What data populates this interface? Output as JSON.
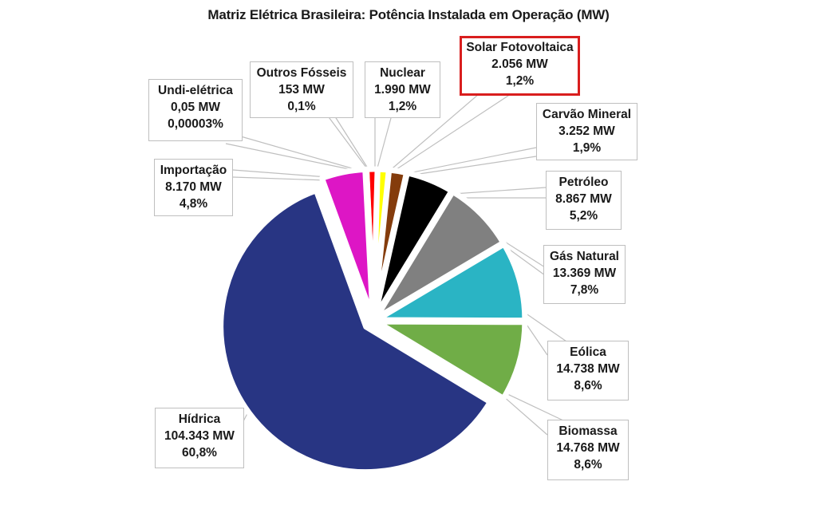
{
  "title": "Matriz Elétrica Brasileira: Potência Instalada em Operação (MW)",
  "chart_data": {
    "type": "pie",
    "title": "Matriz Elétrica Brasileira: Potência Instalada em Operação (MW)",
    "unit": "MW",
    "exploded": true,
    "slices": [
      {
        "label": "Hídrica",
        "value": 104343,
        "value_text": "104.343 MW",
        "percent": 60.8,
        "percent_text": "60,8%",
        "color": "#283583"
      },
      {
        "label": "Importação",
        "value": 8170,
        "value_text": "8.170 MW",
        "percent": 4.8,
        "percent_text": "4,8%",
        "color": "#dd16c5"
      },
      {
        "label": "Undi-elétrica",
        "value": 0.05,
        "value_text": "0,05 MW",
        "percent": 3e-05,
        "percent_text": "0,00003%",
        "color": "#ffffff"
      },
      {
        "label": "Outros Fósseis",
        "value": 153,
        "value_text": "153 MW",
        "percent": 0.1,
        "percent_text": "0,1%",
        "color": "#c8c8c8"
      },
      {
        "label": "Nuclear",
        "value": 1990,
        "value_text": "1.990 MW",
        "percent": 1.2,
        "percent_text": "1,2%",
        "color": "#ff0000"
      },
      {
        "label": "Solar Fotovoltaica",
        "value": 2056,
        "value_text": "2.056 MW",
        "percent": 1.2,
        "percent_text": "1,2%",
        "color": "#ffff00",
        "highlighted": true
      },
      {
        "label": "Carvão Mineral",
        "value": 3252,
        "value_text": "3.252 MW",
        "percent": 1.9,
        "percent_text": "1,9%",
        "color": "#843c0c"
      },
      {
        "label": "Petróleo",
        "value": 8867,
        "value_text": "8.867 MW",
        "percent": 5.2,
        "percent_text": "5,2%",
        "color": "#000000"
      },
      {
        "label": "Gás Natural",
        "value": 13369,
        "value_text": "13.369 MW",
        "percent": 7.8,
        "percent_text": "7,8%",
        "color": "#808080"
      },
      {
        "label": "Eólica",
        "value": 14738,
        "value_text": "14.738 MW",
        "percent": 8.6,
        "percent_text": "8,6%",
        "color": "#2ab4c4"
      },
      {
        "label": "Biomassa",
        "value": 14768,
        "value_text": "14.768 MW",
        "percent": 8.6,
        "percent_text": "8,6%",
        "color": "#70ad47"
      }
    ]
  },
  "callouts": {
    "undi": {
      "l1": "Undi-elétrica",
      "l2": "0,05 MW",
      "l3": "0,00003%"
    },
    "outros": {
      "l1": "Outros Fósseis",
      "l2": "153 MW",
      "l3": "0,1%"
    },
    "nuclear": {
      "l1": "Nuclear",
      "l2": "1.990 MW",
      "l3": "1,2%"
    },
    "solar": {
      "l1": "Solar Fotovoltaica",
      "l2": "2.056 MW",
      "l3": "1,2%"
    },
    "carvao": {
      "l1": "Carvão Mineral",
      "l2": "3.252 MW",
      "l3": "1,9%"
    },
    "importacao": {
      "l1": "Importação",
      "l2": "8.170 MW",
      "l3": "4,8%"
    },
    "petroleo": {
      "l1": "Petróleo",
      "l2": "8.867 MW",
      "l3": "5,2%"
    },
    "gas": {
      "l1": "Gás Natural",
      "l2": "13.369 MW",
      "l3": "7,8%"
    },
    "eolica": {
      "l1": "Eólica",
      "l2": "14.738 MW",
      "l3": "8,6%"
    },
    "biomassa": {
      "l1": "Biomassa",
      "l2": "14.768 MW",
      "l3": "8,6%"
    },
    "hidrica": {
      "l1": "Hídrica",
      "l2": "104.343 MW",
      "l3": "60,8%"
    }
  }
}
